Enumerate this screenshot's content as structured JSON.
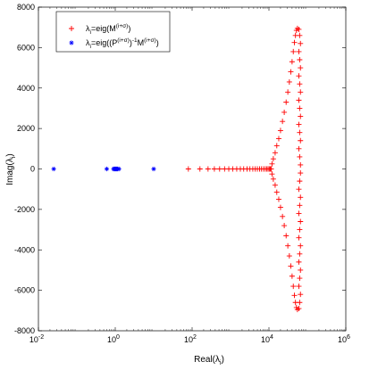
{
  "chart_data": {
    "type": "scatter",
    "title": "",
    "xlabel": "Real(λ_i)",
    "ylabel": "Imag(λ_i)",
    "xscale": "log",
    "xlim": [
      0.01,
      1000000
    ],
    "ylim": [
      -8000,
      8000
    ],
    "xticks": [
      0.01,
      1,
      100,
      10000,
      1000000
    ],
    "xtick_labels": [
      {
        "base": "10",
        "exp": "-2"
      },
      {
        "base": "10",
        "exp": "0"
      },
      {
        "base": "10",
        "exp": "2"
      },
      {
        "base": "10",
        "exp": "4"
      },
      {
        "base": "10",
        "exp": "6"
      }
    ],
    "yticks": [
      -8000,
      -6000,
      -4000,
      -2000,
      0,
      2000,
      4000,
      6000,
      8000
    ],
    "ytick_labels": [
      "-8000",
      "-6000",
      "-4000",
      "-2000",
      "0",
      "2000",
      "4000",
      "6000",
      "8000"
    ],
    "grid": false,
    "legend_position": "top-left",
    "series": [
      {
        "name": "λ_i=eig(M^((i+σ)))",
        "legend": {
          "pre": "λ",
          "sub": "i",
          "mid": "=eig(M",
          "sup": "(i+σ)",
          "post": ")"
        },
        "marker": "plus",
        "color": "#ff0000",
        "axis_points": [
          80,
          160,
          260,
          380,
          520,
          700,
          900,
          1150,
          1450,
          1800,
          2200,
          2700,
          3200,
          3800,
          4400,
          5000,
          5700,
          6400,
          7200,
          8000,
          8800,
          9500,
          10200,
          10800,
          11400
        ],
        "branch": [
          {
            "x": 12000,
            "y": 250
          },
          {
            "x": 13000,
            "y": 500
          },
          {
            "x": 14500,
            "y": 800
          },
          {
            "x": 16000,
            "y": 1150
          },
          {
            "x": 18000,
            "y": 1500
          },
          {
            "x": 20000,
            "y": 1900
          },
          {
            "x": 22500,
            "y": 2350
          },
          {
            "x": 25000,
            "y": 2800
          },
          {
            "x": 28000,
            "y": 3300
          },
          {
            "x": 31000,
            "y": 3800
          },
          {
            "x": 34000,
            "y": 4300
          },
          {
            "x": 37000,
            "y": 4800
          },
          {
            "x": 40000,
            "y": 5300
          },
          {
            "x": 43000,
            "y": 5800
          },
          {
            "x": 46000,
            "y": 6250
          },
          {
            "x": 49000,
            "y": 6600
          },
          {
            "x": 52000,
            "y": 6850
          },
          {
            "x": 55000,
            "y": 6950
          }
        ],
        "right_edge_x": [
          60000,
          63000,
          66000
        ],
        "right_edge_y": [
          6900,
          6600,
          6200,
          5800,
          5400,
          5000,
          4600,
          4200,
          3800,
          3400,
          3000,
          2600,
          2200,
          1800,
          1400,
          1000,
          600,
          200
        ]
      },
      {
        "name": "λ_i=eig((P^((i+σ)))^(-1) M^((i+σ)))",
        "legend": {
          "pre": "λ",
          "sub": "i",
          "mid": "=eig((P",
          "sup": "(i+σ)",
          "mid2": ")",
          "sup2": "-1",
          "mid3": "M",
          "sup3": "(i+σ)",
          "post": ")"
        },
        "marker": "asterisk",
        "color": "#0000ff",
        "points": [
          {
            "x": 0.025,
            "y": 0
          },
          {
            "x": 0.6,
            "y": 0
          },
          {
            "x": 0.9,
            "y": 0
          },
          {
            "x": 0.95,
            "y": 0
          },
          {
            "x": 1.0,
            "y": 0
          },
          {
            "x": 1.05,
            "y": 0
          },
          {
            "x": 1.1,
            "y": 0
          },
          {
            "x": 1.15,
            "y": 0
          },
          {
            "x": 1.25,
            "y": 0
          },
          {
            "x": 10,
            "y": 0
          }
        ]
      }
    ]
  }
}
